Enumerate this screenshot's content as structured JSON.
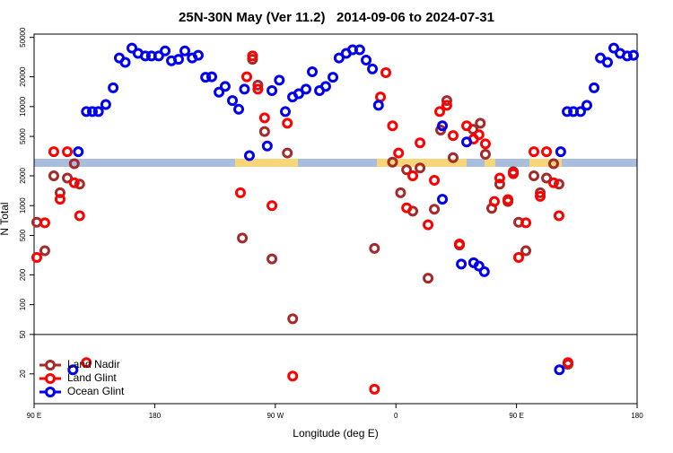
{
  "chart_data": {
    "type": "scatter",
    "title": "25N-30N May (Ver 11.2)   2014-09-06 to 2024-07-31",
    "x_label": "Longitude (deg E)",
    "y_label": "N Total",
    "xlim": [
      90,
      540
    ],
    "xticks": [
      {
        "value": 90,
        "label": "90 E"
      },
      {
        "value": 180,
        "label": "180"
      },
      {
        "value": 270,
        "label": "90 W"
      },
      {
        "value": 360,
        "label": "0"
      },
      {
        "value": 450,
        "label": "90 E"
      },
      {
        "value": 540,
        "label": "180"
      }
    ],
    "ylim": [
      10,
      54000
    ],
    "log_y": true,
    "yticks": [
      50000,
      20000,
      10000,
      5000,
      2000,
      1000,
      500,
      200,
      100,
      50,
      20
    ],
    "hline": 50,
    "legend": "lower left",
    "series": [
      {
        "name": "Land Nadir",
        "color": "#a52a2a",
        "x": [
          92,
          98,
          104.7,
          109.4,
          114.8,
          120,
          124,
          245.4,
          253,
          257,
          262,
          267.5,
          279,
          283,
          344,
          357.5,
          363.5,
          368,
          372.6,
          378,
          384,
          388.7,
          393.4,
          398,
          402.7,
          407.4,
          417.5,
          423,
          426.8,
          431.5,
          437.5,
          443.6,
          447.6,
          451.6,
          457,
          463,
          467.7,
          472.4,
          477.7,
          481.7,
          488.4
        ],
        "values": [
          680,
          350,
          2000,
          1350,
          1900,
          2650,
          1650,
          470,
          30000,
          16500,
          5600,
          290,
          3400,
          72,
          370,
          2750,
          1350,
          2300,
          880,
          2400,
          185,
          920,
          5800,
          11500,
          3050,
          400,
          5900,
          6800,
          3300,
          940,
          1650,
          1100,
          2200,
          680,
          350,
          2000,
          1350,
          1900,
          2650,
          1650,
          25
        ]
      },
      {
        "name": "Land Glint",
        "color": "#ff0000",
        "x": [
          92,
          98,
          104.7,
          114.8,
          109.4,
          120,
          124,
          129,
          244,
          248.7,
          253,
          257,
          262,
          267.5,
          279,
          283,
          344,
          348.5,
          352.5,
          357.5,
          362,
          368,
          372.6,
          378,
          384,
          388.7,
          392.7,
          398,
          402.7,
          407.4,
          412.8,
          418,
          422,
          426.8,
          433.5,
          437.5,
          443.6,
          447.6,
          451.6,
          457,
          463,
          467.7,
          472.4,
          477.7,
          481.7,
          488.4
        ],
        "values": [
          300,
          670,
          3500,
          3500,
          1160,
          1700,
          790,
          26,
          1350,
          20000,
          32500,
          15000,
          7700,
          1000,
          6800,
          19,
          14,
          12500,
          22000,
          6400,
          3400,
          950,
          2000,
          4300,
          640,
          1800,
          8900,
          10300,
          5100,
          410,
          6400,
          4700,
          5200,
          4200,
          1100,
          1900,
          1150,
          2100,
          300,
          670,
          3500,
          1240,
          3500,
          1700,
          790,
          26
        ]
      },
      {
        "name": "Ocean Glint",
        "color": "#0000ee",
        "x": [
          119,
          123,
          129,
          133.5,
          138,
          143.5,
          149,
          153.6,
          158,
          163,
          167.6,
          173,
          177.6,
          183,
          187.8,
          192.5,
          197.8,
          202.5,
          208,
          212.5,
          218,
          222.6,
          228,
          232.6,
          238,
          242.7,
          247,
          250.7,
          264,
          267.5,
          273,
          277.5,
          282.9,
          287.5,
          292.9,
          297.6,
          303,
          307.6,
          313,
          317.6,
          322.9,
          327.7,
          333,
          337.8,
          342.5,
          347,
          394.7,
          394.7,
          408.8,
          412.8,
          418,
          422,
          426,
          482,
          483,
          487.8,
          492.5,
          497.8,
          502.5,
          507.9,
          512.6,
          517.9,
          522.6,
          527.3,
          532.6,
          537.3
        ],
        "values": [
          22,
          3500,
          8900,
          8900,
          8900,
          10500,
          15500,
          31000,
          28000,
          39000,
          34500,
          32500,
          32500,
          32500,
          36500,
          29000,
          30000,
          36500,
          31000,
          33000,
          19800,
          20000,
          14000,
          16000,
          11500,
          9400,
          15000,
          3200,
          4000,
          14500,
          18500,
          8900,
          12500,
          13500,
          15000,
          22500,
          14500,
          16000,
          19800,
          31000,
          34500,
          37500,
          37500,
          29500,
          24000,
          10300,
          6400,
          1160,
          257,
          4400,
          265,
          245,
          215,
          22,
          3500,
          8900,
          8900,
          8900,
          10300,
          15500,
          31000,
          28000,
          39000,
          34500,
          32500,
          33000
        ]
      }
    ]
  }
}
